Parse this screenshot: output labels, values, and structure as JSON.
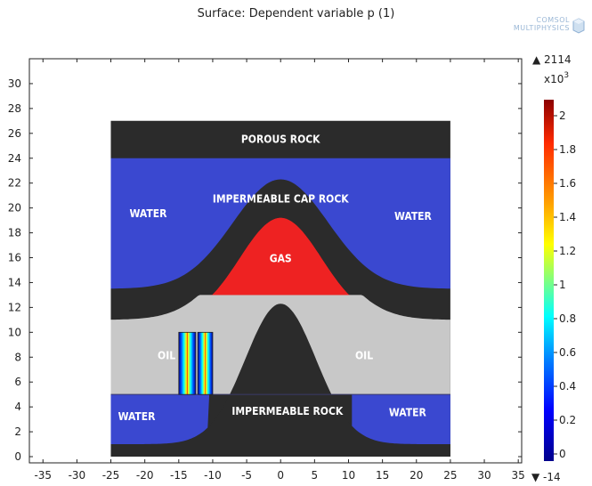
{
  "title": "Surface: Dependent variable p (1)",
  "brand": {
    "line1": "COMSOL",
    "line2": "MULTIPHYSICS"
  },
  "axes": {
    "x_ticks": [
      -35,
      -30,
      -25,
      -20,
      -15,
      -10,
      -5,
      0,
      5,
      10,
      15,
      20,
      25,
      30,
      35
    ],
    "y_ticks": [
      0,
      2,
      4,
      6,
      8,
      10,
      12,
      14,
      16,
      18,
      20,
      22,
      24,
      26,
      28,
      30
    ],
    "xlim": [
      -37,
      35.5
    ],
    "ylim": [
      -0.5,
      32
    ]
  },
  "regions": {
    "porous_rock": "POROUS ROCK",
    "cap_rock": "IMPERMEABLE CAP ROCK",
    "water_left_top": "WATER",
    "water_right_top": "WATER",
    "gas": "GAS",
    "oil_left": "OIL",
    "oil_right": "OIL",
    "water_left_bottom": "WATER",
    "water_right_bottom": "WATER",
    "impermeable_rock": "IMPERMEABLE ROCK"
  },
  "colorbar": {
    "max_label": "▲ 2114",
    "multiplier": "x10",
    "exponent": "3",
    "ticks": [
      "2",
      "1.8",
      "1.6",
      "1.4",
      "1.2",
      "1",
      "0.8",
      "0.6",
      "0.4",
      "0.2",
      "0"
    ],
    "min_label": "▼ -14",
    "colors": [
      "#8b0000",
      "#ff2a00",
      "#ff9c00",
      "#ffff00",
      "#7fff7f",
      "#00ffff",
      "#0080ff",
      "#0000ff",
      "#00008b"
    ]
  },
  "colors": {
    "rock": "#2b2b2b",
    "water": "#3a48d0",
    "oil": "#c8c8c8",
    "gas": "#ee2222"
  }
}
